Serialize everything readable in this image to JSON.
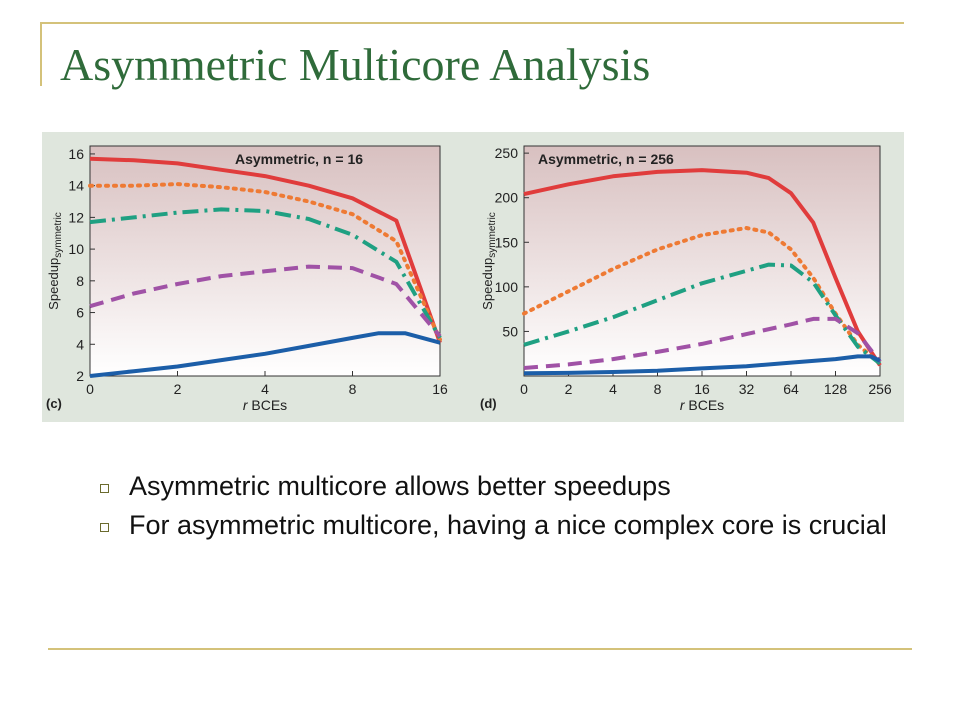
{
  "slide": {
    "title": "Asymmetric Multicore Analysis",
    "bullets": [
      "Asymmetric multicore allows better speedups",
      "For asymmetric multicore, having a nice complex core is crucial"
    ]
  },
  "colors": {
    "rule": "#d4c27a",
    "title": "#2f6b3a",
    "panel_bg": "#dfe6dd",
    "series": [
      "#e03c3c",
      "#ee7a34",
      "#1fa082",
      "#a052a6",
      "#1c5ea8"
    ]
  },
  "chart_data": [
    {
      "type": "line",
      "panel_label": "(c)",
      "title": "Asymmetric, n = 16",
      "ylabel": "Speedup",
      "ylabel_sub": "symmetric",
      "xlabel_italic": "r",
      "xlabel": " BCEs",
      "x_ticks": [
        "0",
        "2",
        "4",
        "8",
        "16"
      ],
      "y_ticks": [
        2,
        4,
        6,
        8,
        10,
        12,
        14,
        16
      ],
      "ylim": [
        2,
        16.5
      ],
      "series_styles": [
        "solid",
        "dotted",
        "dashdot",
        "dashed",
        "solid"
      ],
      "series": [
        {
          "values": [
            [
              0,
              15.7
            ],
            [
              0.5,
              15.6
            ],
            [
              1,
              15.4
            ],
            [
              1.5,
              15.0
            ],
            [
              2,
              14.6
            ],
            [
              2.5,
              14.0
            ],
            [
              3,
              13.2
            ],
            [
              3.5,
              11.8
            ],
            [
              4,
              4.1
            ]
          ]
        },
        {
          "values": [
            [
              0,
              14.0
            ],
            [
              0.5,
              14.0
            ],
            [
              1,
              14.1
            ],
            [
              1.5,
              13.9
            ],
            [
              2,
              13.6
            ],
            [
              2.5,
              13.0
            ],
            [
              3,
              12.2
            ],
            [
              3.5,
              10.5
            ],
            [
              4,
              4.3
            ]
          ]
        },
        {
          "values": [
            [
              0,
              11.7
            ],
            [
              0.5,
              12.0
            ],
            [
              1,
              12.3
            ],
            [
              1.5,
              12.5
            ],
            [
              2,
              12.4
            ],
            [
              2.5,
              11.9
            ],
            [
              3,
              10.9
            ],
            [
              3.5,
              9.2
            ],
            [
              4,
              4.4
            ]
          ]
        },
        {
          "values": [
            [
              0,
              6.4
            ],
            [
              0.5,
              7.2
            ],
            [
              1,
              7.8
            ],
            [
              1.5,
              8.3
            ],
            [
              2,
              8.6
            ],
            [
              2.5,
              8.9
            ],
            [
              3,
              8.8
            ],
            [
              3.5,
              7.8
            ],
            [
              4,
              4.5
            ]
          ]
        },
        {
          "values": [
            [
              0,
              2.0
            ],
            [
              0.5,
              2.3
            ],
            [
              1,
              2.6
            ],
            [
              1.5,
              3.0
            ],
            [
              2,
              3.4
            ],
            [
              2.5,
              3.9
            ],
            [
              3,
              4.4
            ],
            [
              3.3,
              4.7
            ],
            [
              3.6,
              4.7
            ],
            [
              4,
              4.1
            ]
          ]
        }
      ]
    },
    {
      "type": "line",
      "panel_label": "(d)",
      "title": "Asymmetric, n = 256",
      "ylabel": "Speedup",
      "ylabel_sub": "symmetric",
      "xlabel_italic": "r",
      "xlabel": " BCEs",
      "x_ticks": [
        "0",
        "2",
        "4",
        "8",
        "16",
        "32",
        "64",
        "128",
        "256"
      ],
      "y_ticks": [
        50,
        100,
        150,
        200,
        250
      ],
      "ylim": [
        0,
        258
      ],
      "series_styles": [
        "solid",
        "dotted",
        "dashdot",
        "dashed",
        "solid"
      ],
      "series": [
        {
          "values": [
            [
              0,
              204
            ],
            [
              1,
              215
            ],
            [
              2,
              224
            ],
            [
              3,
              229
            ],
            [
              4,
              231
            ],
            [
              5,
              228
            ],
            [
              5.5,
              222
            ],
            [
              6,
              205
            ],
            [
              6.5,
              172
            ],
            [
              7,
              110
            ],
            [
              7.5,
              50
            ],
            [
              8,
              12
            ]
          ]
        },
        {
          "values": [
            [
              0,
              70
            ],
            [
              1,
              95
            ],
            [
              2,
              120
            ],
            [
              3,
              142
            ],
            [
              4,
              158
            ],
            [
              5,
              166
            ],
            [
              5.5,
              161
            ],
            [
              6,
              142
            ],
            [
              6.5,
              110
            ],
            [
              7,
              70
            ],
            [
              7.5,
              35
            ],
            [
              8,
              14
            ]
          ]
        },
        {
          "values": [
            [
              0,
              35
            ],
            [
              1,
              50
            ],
            [
              2,
              66
            ],
            [
              3,
              85
            ],
            [
              4,
              104
            ],
            [
              5,
              118
            ],
            [
              5.5,
              125
            ],
            [
              6,
              124
            ],
            [
              6.5,
              105
            ],
            [
              7,
              68
            ],
            [
              7.5,
              33
            ],
            [
              8,
              14
            ]
          ]
        },
        {
          "values": [
            [
              0,
              9
            ],
            [
              1,
              13
            ],
            [
              2,
              19
            ],
            [
              3,
              27
            ],
            [
              4,
              36
            ],
            [
              5,
              47
            ],
            [
              6,
              58
            ],
            [
              6.5,
              64
            ],
            [
              7,
              64
            ],
            [
              7.5,
              48
            ],
            [
              8,
              16
            ]
          ]
        },
        {
          "values": [
            [
              0,
              3
            ],
            [
              1,
              3.5
            ],
            [
              2,
              4.5
            ],
            [
              3,
              6
            ],
            [
              4,
              8.5
            ],
            [
              5,
              11
            ],
            [
              6,
              15
            ],
            [
              7,
              19
            ],
            [
              7.5,
              22
            ],
            [
              7.8,
              22
            ],
            [
              8,
              17
            ]
          ]
        }
      ]
    }
  ]
}
